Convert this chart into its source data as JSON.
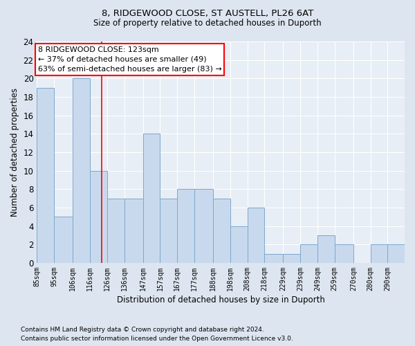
{
  "title1": "8, RIDGEWOOD CLOSE, ST AUSTELL, PL26 6AT",
  "title2": "Size of property relative to detached houses in Duporth",
  "xlabel": "Distribution of detached houses by size in Duporth",
  "ylabel": "Number of detached properties",
  "bar_left_edges": [
    85,
    95,
    106,
    116,
    126,
    136,
    147,
    157,
    167,
    177,
    188,
    198,
    208,
    218,
    229,
    239,
    249,
    259,
    270,
    280,
    290
  ],
  "bar_heights": [
    19,
    5,
    20,
    10,
    7,
    7,
    14,
    7,
    8,
    8,
    7,
    4,
    6,
    1,
    1,
    2,
    3,
    2,
    0,
    2,
    2
  ],
  "bar_widths": [
    10,
    11,
    10,
    10,
    10,
    11,
    10,
    10,
    10,
    11,
    10,
    10,
    10,
    11,
    10,
    10,
    10,
    11,
    10,
    10,
    10
  ],
  "tick_labels": [
    "85sqm",
    "95sqm",
    "106sqm",
    "116sqm",
    "126sqm",
    "136sqm",
    "147sqm",
    "157sqm",
    "167sqm",
    "177sqm",
    "188sqm",
    "198sqm",
    "208sqm",
    "218sqm",
    "229sqm",
    "239sqm",
    "249sqm",
    "259sqm",
    "270sqm",
    "280sqm",
    "290sqm"
  ],
  "bar_color": "#c9d9ed",
  "bar_edge_color": "#7aa8cc",
  "red_line_x": 123,
  "ylim": [
    0,
    24
  ],
  "yticks": [
    0,
    2,
    4,
    6,
    8,
    10,
    12,
    14,
    16,
    18,
    20,
    22,
    24
  ],
  "annotation_lines": [
    "8 RIDGEWOOD CLOSE: 123sqm",
    "← 37% of detached houses are smaller (49)",
    "63% of semi-detached houses are larger (83) →"
  ],
  "footer1": "Contains HM Land Registry data © Crown copyright and database right 2024.",
  "footer2": "Contains public sector information licensed under the Open Government Licence v3.0.",
  "bg_color": "#dde6f0",
  "plot_bg_color": "#e8eef5",
  "grid_color": "#ffffff"
}
